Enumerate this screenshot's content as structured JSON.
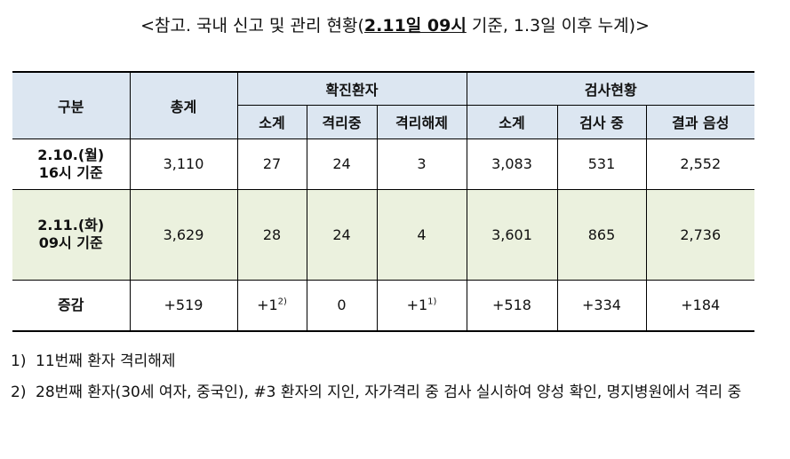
{
  "title": {
    "prefix": "<참고. 국내 신고 및 관리 현황(",
    "highlight": "2.11일 09시",
    "suffix": " 기준, 1.3일 이후 누계)>"
  },
  "table": {
    "header": {
      "division": "구분",
      "total": "총계",
      "confirmed": "확진환자",
      "testing": "검사현황"
    },
    "subheader": [
      "소계",
      "격리중",
      "격리해제",
      "소계",
      "검사 중",
      "결과 음성"
    ],
    "rows": [
      {
        "label": [
          "2.10.(월)",
          "16시 기준"
        ],
        "cells": [
          {
            "text": "3,110"
          },
          {
            "text": "27"
          },
          {
            "text": "24"
          },
          {
            "text": "3"
          },
          {
            "text": "3,083"
          },
          {
            "text": "531"
          },
          {
            "text": "2,552"
          }
        ]
      },
      {
        "label": [
          "2.11.(화)",
          "09시 기준"
        ],
        "cells": [
          {
            "text": "3,629"
          },
          {
            "text": "28"
          },
          {
            "text": "24"
          },
          {
            "text": "4"
          },
          {
            "text": "3,601"
          },
          {
            "text": "865"
          },
          {
            "text": "2,736"
          }
        ]
      },
      {
        "label": [
          "증감"
        ],
        "cells": [
          {
            "text": "+519"
          },
          {
            "text": "+1",
            "sup": "2)"
          },
          {
            "text": "0"
          },
          {
            "text": "+1",
            "sup": "1)"
          },
          {
            "text": "+518"
          },
          {
            "text": "+334"
          },
          {
            "text": "+184"
          }
        ]
      }
    ]
  },
  "notes": [
    {
      "marker": "1)",
      "text": "11번째 환자 격리해제"
    },
    {
      "marker": "2)",
      "text": "28번째 환자(30세 여자, 중국인), #3 환자의 지인, 자가격리 중 검사 실시하여 양성 확인, 명지병원에서 격리 중"
    }
  ]
}
